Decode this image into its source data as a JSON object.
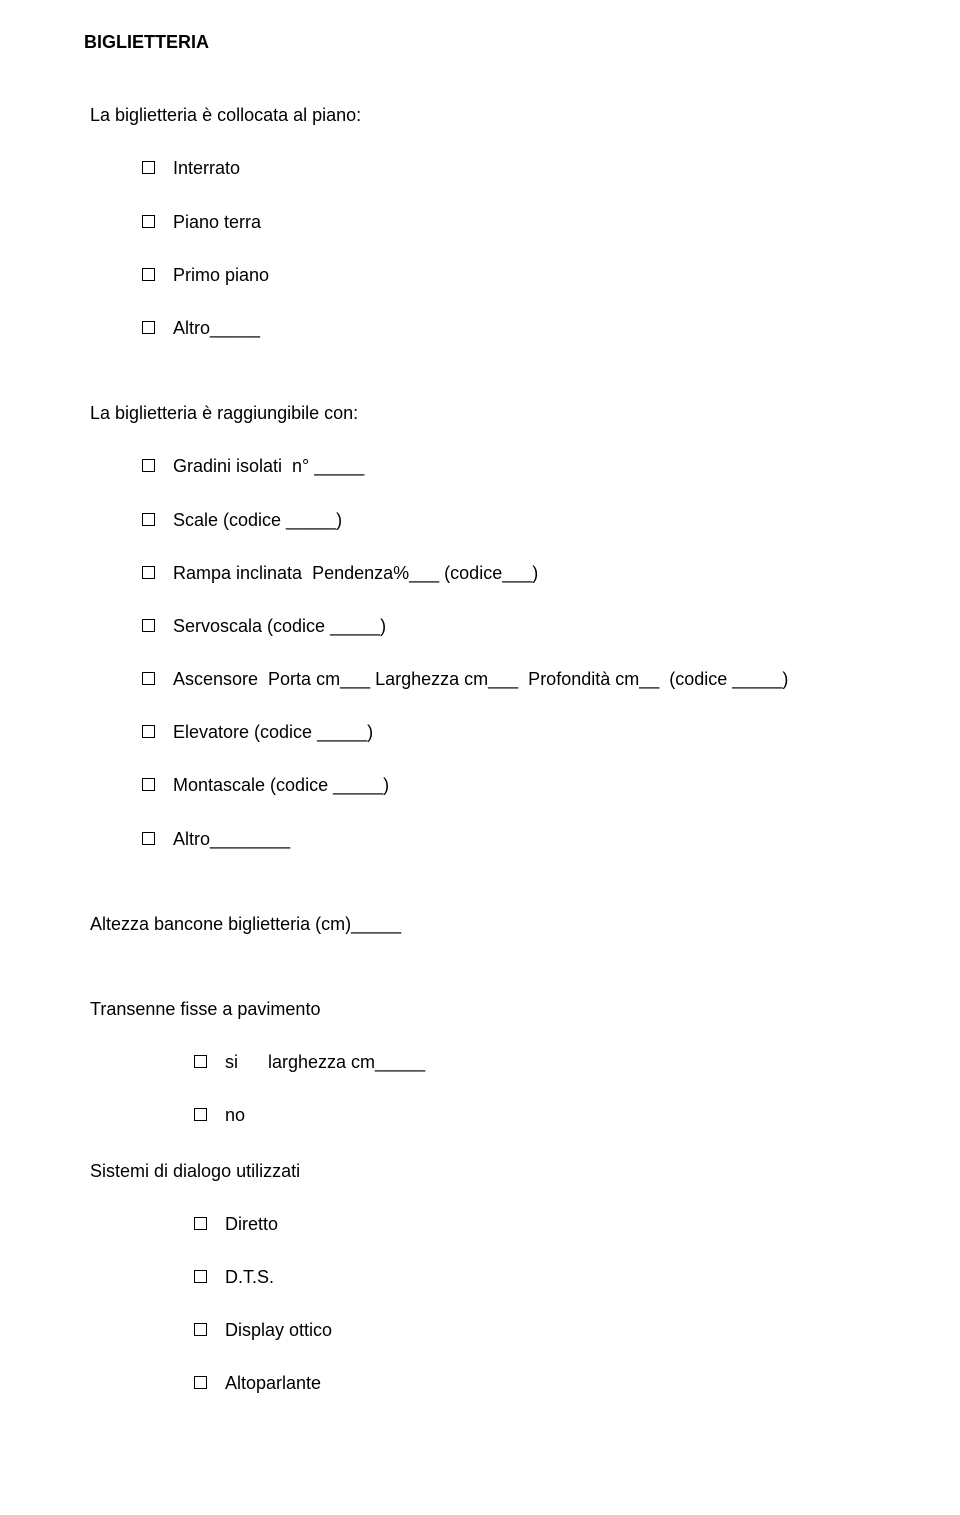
{
  "title": "BIGLIETTERIA",
  "q1": {
    "text": "La biglietteria è collocata al piano:",
    "options": [
      "Interrato",
      "Piano terra",
      "Primo piano",
      "Altro_____"
    ]
  },
  "q2": {
    "text": "La biglietteria è raggiungibile con:",
    "options": [
      "Gradini isolati  n° _____",
      "Scale (codice _____)",
      "Rampa inclinata  Pendenza%___ (codice___)",
      "Servoscala (codice _____)",
      "Ascensore  Porta cm___ Larghezza cm___  Profondità cm__  (codice _____)",
      "Elevatore (codice _____)",
      "Montascale (codice _____)",
      "Altro________"
    ]
  },
  "q3": {
    "text": "Altezza bancone biglietteria (cm)_____"
  },
  "q4": {
    "text": "Transenne fisse a pavimento",
    "options": [
      "si      larghezza cm_____",
      "no"
    ]
  },
  "q5": {
    "text": "Sistemi di dialogo utilizzati",
    "options": [
      "Diretto",
      "D.T.S.",
      "Display ottico",
      "Altoparlante"
    ]
  },
  "colors": {
    "background": "#ffffff",
    "text": "#000000",
    "checkbox_border": "#000000"
  },
  "typography": {
    "font_family": "Arial",
    "body_size_pt": 14,
    "title_weight": "bold"
  }
}
